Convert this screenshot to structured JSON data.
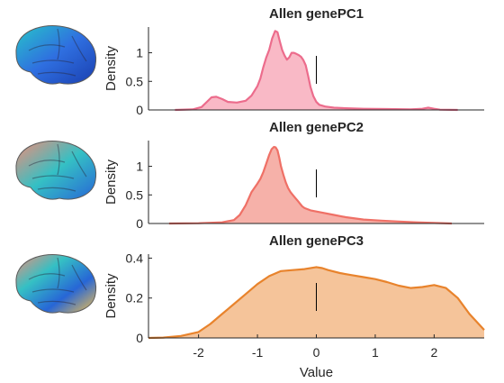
{
  "chart_data": [
    {
      "type": "area",
      "title": "Allen genePC1",
      "ylabel": "Density",
      "xlabel": "",
      "xlim": [
        -2.85,
        2.85
      ],
      "ylim": [
        0,
        1.45
      ],
      "yticks": [
        0,
        0.5,
        1
      ],
      "ytick_labels": [
        "0",
        "0.5",
        "1"
      ],
      "vline_x": 0,
      "fill": "#f9b9c6",
      "stroke": "#ec6c8c",
      "brain_colors": [
        "#27c4c9",
        "#2f6fe0",
        "#1a3fb0"
      ],
      "x": [
        -2.4,
        -2.1,
        -1.95,
        -1.85,
        -1.78,
        -1.7,
        -1.6,
        -1.5,
        -1.35,
        -1.2,
        -1.1,
        -1.0,
        -0.95,
        -0.9,
        -0.85,
        -0.8,
        -0.75,
        -0.7,
        -0.66,
        -0.62,
        -0.58,
        -0.54,
        -0.5,
        -0.46,
        -0.42,
        -0.38,
        -0.34,
        -0.3,
        -0.26,
        -0.22,
        -0.18,
        -0.14,
        -0.1,
        -0.05,
        0.0,
        0.05,
        0.15,
        0.3,
        0.5,
        0.8,
        1.2,
        1.6,
        1.8,
        1.9,
        2.0,
        2.1,
        2.4
      ],
      "y": [
        0.0,
        0.01,
        0.05,
        0.15,
        0.22,
        0.23,
        0.19,
        0.14,
        0.13,
        0.16,
        0.25,
        0.42,
        0.55,
        0.75,
        0.92,
        1.05,
        1.25,
        1.38,
        1.36,
        1.2,
        1.05,
        0.95,
        0.88,
        0.92,
        1.0,
        1.0,
        0.98,
        0.96,
        0.93,
        0.87,
        0.78,
        0.6,
        0.4,
        0.24,
        0.14,
        0.09,
        0.06,
        0.04,
        0.03,
        0.02,
        0.015,
        0.01,
        0.02,
        0.04,
        0.02,
        0.005,
        0.0
      ]
    },
    {
      "type": "area",
      "title": "Allen genePC2",
      "ylabel": "Density",
      "xlabel": "",
      "xlim": [
        -2.85,
        2.85
      ],
      "ylim": [
        0,
        1.45
      ],
      "yticks": [
        0,
        0.5,
        1
      ],
      "ytick_labels": [
        "0",
        "0.5",
        "1"
      ],
      "vline_x": 0,
      "fill": "#f6b1a9",
      "stroke": "#ef7066",
      "brain_colors": [
        "#f08c78",
        "#35c0c4",
        "#2766d6"
      ],
      "x": [
        -2.5,
        -2.0,
        -1.6,
        -1.4,
        -1.3,
        -1.2,
        -1.1,
        -1.0,
        -0.95,
        -0.9,
        -0.85,
        -0.8,
        -0.76,
        -0.72,
        -0.69,
        -0.66,
        -0.63,
        -0.6,
        -0.56,
        -0.52,
        -0.48,
        -0.44,
        -0.4,
        -0.36,
        -0.32,
        -0.28,
        -0.24,
        -0.2,
        -0.15,
        -0.1,
        0.0,
        0.1,
        0.3,
        0.5,
        0.8,
        1.1,
        1.4,
        1.7,
        2.0,
        2.3
      ],
      "y": [
        0.0,
        0.005,
        0.02,
        0.06,
        0.15,
        0.32,
        0.55,
        0.7,
        0.78,
        0.9,
        1.05,
        1.2,
        1.3,
        1.34,
        1.33,
        1.28,
        1.15,
        1.0,
        0.85,
        0.72,
        0.62,
        0.55,
        0.5,
        0.45,
        0.4,
        0.35,
        0.3,
        0.27,
        0.25,
        0.23,
        0.21,
        0.19,
        0.15,
        0.11,
        0.07,
        0.05,
        0.035,
        0.02,
        0.01,
        0.0
      ]
    },
    {
      "type": "area",
      "title": "Allen genePC3",
      "ylabel": "Density",
      "xlabel": "Value",
      "xlim": [
        -2.85,
        2.85
      ],
      "ylim": [
        0,
        0.42
      ],
      "yticks": [
        0,
        0.2,
        0.4
      ],
      "ytick_labels": [
        "0",
        "0.2",
        "0.4"
      ],
      "xticks": [
        -2,
        -1,
        0,
        1,
        2
      ],
      "xtick_labels": [
        "-2",
        "-1",
        "0",
        "1",
        "2"
      ],
      "vline_x": 0,
      "fill": "#f5c49a",
      "stroke": "#e8832c",
      "brain_colors": [
        "#f08c78",
        "#35c0c4",
        "#2766d6",
        "#f2c14e"
      ],
      "x": [
        -2.85,
        -2.6,
        -2.3,
        -2.0,
        -1.8,
        -1.6,
        -1.4,
        -1.2,
        -1.0,
        -0.8,
        -0.6,
        -0.4,
        -0.2,
        0.0,
        0.1,
        0.2,
        0.4,
        0.6,
        0.8,
        1.0,
        1.2,
        1.4,
        1.6,
        1.8,
        2.0,
        2.2,
        2.4,
        2.6,
        2.85
      ],
      "y": [
        0.0,
        0.002,
        0.01,
        0.03,
        0.07,
        0.12,
        0.17,
        0.22,
        0.27,
        0.31,
        0.335,
        0.34,
        0.345,
        0.355,
        0.35,
        0.34,
        0.325,
        0.315,
        0.305,
        0.295,
        0.28,
        0.262,
        0.25,
        0.255,
        0.265,
        0.25,
        0.2,
        0.12,
        0.04
      ]
    }
  ]
}
